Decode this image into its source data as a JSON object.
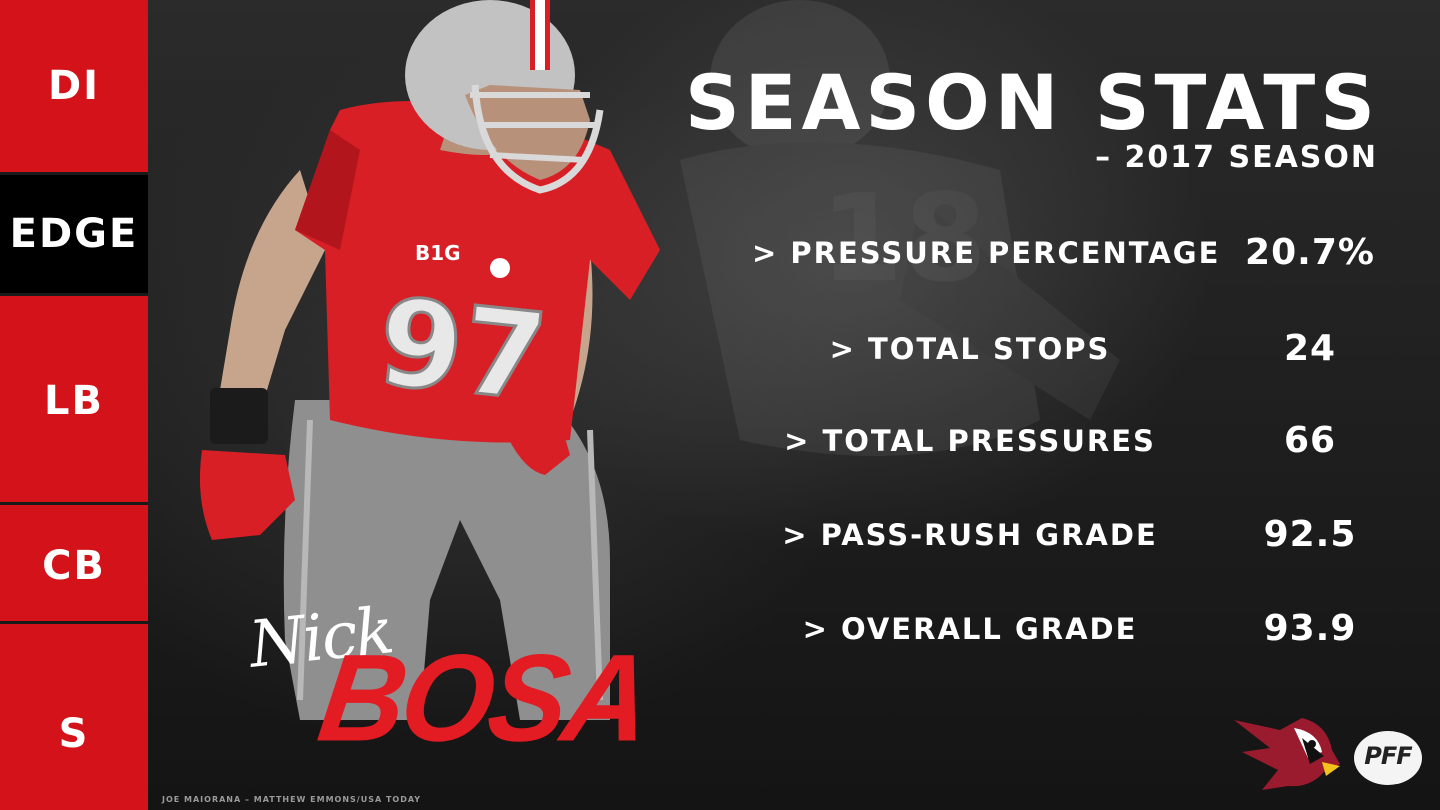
{
  "positions": [
    {
      "label": "DI",
      "active": false
    },
    {
      "label": "EDGE",
      "active": true
    },
    {
      "label": "LB",
      "active": false
    },
    {
      "label": "CB",
      "active": false
    },
    {
      "label": "S",
      "active": false
    }
  ],
  "player": {
    "first_name": "Nick",
    "last_name": "BOSA",
    "jersey_number": "97"
  },
  "header": {
    "title": "SEASON STATS",
    "subtitle": "– 2017 SEASON"
  },
  "stats": [
    {
      "label": "> PRESSURE PERCENTAGE",
      "value": "20.7%"
    },
    {
      "label": "> TOTAL STOPS",
      "value": "24"
    },
    {
      "label": "> TOTAL PRESSURES",
      "value": "66"
    },
    {
      "label": "> PASS-RUSH GRADE",
      "value": "92.5"
    },
    {
      "label": "> OVERALL GRADE",
      "value": "93.9"
    }
  ],
  "credit": "JOE MAIORANA – MATTHEW EMMONS/USA TODAY",
  "logos": {
    "team_icon": "cardinal-logo-icon",
    "brand": "PFF"
  },
  "colors": {
    "rail_red": "#d3121a",
    "rail_active": "#000000",
    "name_red": "#e31b23",
    "jersey_red": "#d81f26",
    "pants_gray": "#8f8f8f"
  }
}
